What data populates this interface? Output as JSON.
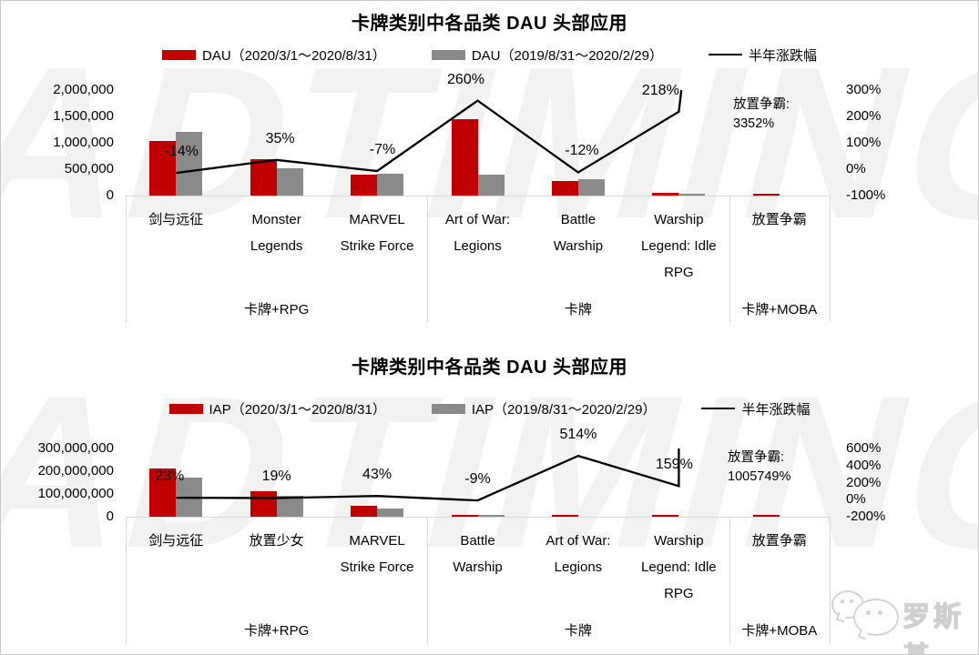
{
  "watermark": "ADTIMING",
  "footer": {
    "brand": "罗斯基"
  },
  "chart_data": [
    {
      "type": "bar",
      "subtype": "grouped-bar-with-line-combo",
      "title": "卡牌类别中各品类 DAU 头部应用",
      "legend": [
        "DAU（2020/3/1～2020/8/31）",
        "DAU（2019/8/31～2020/2/29）",
        "半年涨跌幅"
      ],
      "legend_position": "top",
      "grid": false,
      "colors": {
        "bar1": "#c00000",
        "bar2": "#8a8a8a",
        "line": "#000000"
      },
      "categories": [
        "剑与远征",
        "Monster Legends",
        "MARVEL Strike Force",
        "Art of War: Legions",
        "Battle Warship",
        "Warship Legend: Idle RPG",
        "放置争霸"
      ],
      "category_groups": [
        {
          "label": "卡牌+RPG",
          "span": 3
        },
        {
          "label": "卡牌",
          "span": 3
        },
        {
          "label": "卡牌+MOBA",
          "span": 1
        }
      ],
      "series": [
        {
          "name": "DAU（2020/3/1～2020/8/31）",
          "values": [
            1030000,
            690000,
            390000,
            1440000,
            273000,
            51000,
            20700
          ]
        },
        {
          "name": "DAU（2019/8/31～2020/2/29）",
          "values": [
            1200000,
            510000,
            420000,
            400000,
            310000,
            16000,
            600
          ]
        }
      ],
      "line": {
        "name": "半年涨跌幅",
        "values_pct": [
          -14,
          35,
          -7,
          260,
          -12,
          218,
          3352
        ],
        "labels": [
          "-14%",
          "35%",
          "-7%",
          "260%",
          "-12%",
          "218%",
          ""
        ]
      },
      "annotation": [
        "放置争霸:",
        "3352%"
      ],
      "left_axis": {
        "ticks": [
          "2,000,000",
          "1,500,000",
          "1,000,000",
          "500,000",
          "0"
        ],
        "min": 0,
        "max": 2000000
      },
      "right_axis": {
        "ticks": [
          "300%",
          "200%",
          "100%",
          "0%",
          "-100%"
        ],
        "min_pct": -100,
        "max_pct": 300
      }
    },
    {
      "type": "bar",
      "subtype": "grouped-bar-with-line-combo",
      "title": "卡牌类别中各品类 DAU 头部应用",
      "legend": [
        "IAP（2020/3/1～2020/8/31）",
        "IAP（2019/8/31～2020/2/29）",
        "半年涨跌幅"
      ],
      "legend_position": "top",
      "grid": false,
      "colors": {
        "bar1": "#c00000",
        "bar2": "#8a8a8a",
        "line": "#000000"
      },
      "categories": [
        "剑与远征",
        "放置少女",
        "MARVEL Strike Force",
        "Battle Warship",
        "Art of War: Legions",
        "Warship Legend: Idle RPG",
        "放置争霸"
      ],
      "category_groups": [
        {
          "label": "卡牌+RPG",
          "span": 3
        },
        {
          "label": "卡牌",
          "span": 3
        },
        {
          "label": "卡牌+MOBA",
          "span": 1
        }
      ],
      "series": [
        {
          "name": "IAP（2020/3/1～2020/8/31）",
          "values": [
            212000000,
            112000000,
            50000000,
            7500000,
            3070000,
            2590000,
            2010000
          ]
        },
        {
          "name": "IAP（2019/8/31～2020/2/29）",
          "values": [
            172000000,
            94000000,
            35000000,
            8200000,
            500000,
            1000000,
            200
          ]
        }
      ],
      "line": {
        "name": "半年涨跌幅",
        "values_pct": [
          23,
          19,
          43,
          -9,
          514,
          159,
          1005749
        ],
        "labels": [
          "23%",
          "19%",
          "43%",
          "-9%",
          "514%",
          "159%",
          ""
        ]
      },
      "annotation": [
        "放置争霸:",
        "1005749%"
      ],
      "left_axis": {
        "ticks": [
          "300,000,000",
          "200,000,000",
          "100,000,000",
          "0"
        ],
        "min": 0,
        "max": 300000000
      },
      "right_axis": {
        "ticks": [
          "600%",
          "400%",
          "200%",
          "0%",
          "-200%"
        ],
        "min_pct": -200,
        "max_pct": 600
      }
    }
  ]
}
